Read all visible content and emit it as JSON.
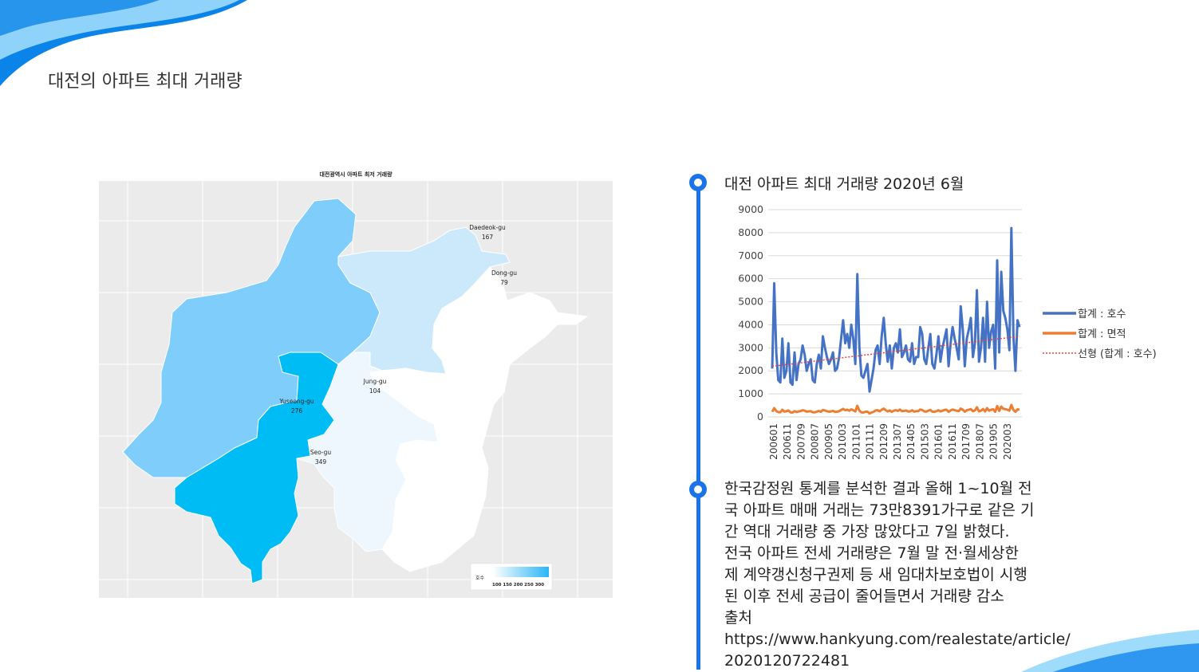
{
  "slide": {
    "title": "대전의 아파트 최대 거래량"
  },
  "map": {
    "title": "대전광역시 아파트 최저 거래량",
    "regions": [
      {
        "name": "Daedeok-gu",
        "value": "167",
        "color": "#cce9fb"
      },
      {
        "name": "Dong-gu",
        "value": "79",
        "color": "#ffffff"
      },
      {
        "name": "Jung-gu",
        "value": "104",
        "color": "#eef7fd"
      },
      {
        "name": "Yuseong-gu",
        "value": "276",
        "color": "#7fcdfb"
      },
      {
        "name": "Seo-gu",
        "value": "349",
        "color": "#00bcf5"
      }
    ],
    "legend": {
      "title": "호수",
      "ticks": "100 150 200 250 300",
      "color_low": "#ffffff",
      "color_high": "#29b6f6"
    },
    "background": "#ebebeb"
  },
  "timeline": {
    "heading1": "대전 아파트 최대 거래량  2020년 6월",
    "body_lines": [
      "한국감정원 통계를 분석한 결과 올해 1~10월 전",
      "국 아파트 매매 거래는 73만8391가구로 같은 기",
      "간 역대 거래량 중 가장 많았다고 7일 밝혔다.",
      "전국 아파트 전세 거래량은  7월 말 전·월세상한",
      "제 계약갱신청구권제 등 새 임대차보호법이 시행",
      "된 이후 전세 공급이 줄어들면서 거래량 감소",
      "출처",
      "https://www.hankyung.com/realestate/article/",
      "2020120722481"
    ],
    "accent": "#1a73e8"
  },
  "chart_data": {
    "type": "line",
    "x_tick_labels": [
      "200601",
      "200611",
      "200709",
      "200807",
      "200905",
      "201003",
      "201101",
      "201111",
      "201209",
      "201307",
      "201405",
      "201503",
      "201601",
      "201611",
      "201709",
      "201807",
      "201905",
      "202003"
    ],
    "ylim": [
      0,
      9000
    ],
    "y_ticks": [
      0,
      1000,
      2000,
      3000,
      4000,
      5000,
      6000,
      7000,
      8000,
      9000
    ],
    "grid": true,
    "legend_position": "right",
    "series": [
      {
        "name": "합계 : 호수",
        "color": "#4472c4",
        "values": [
          2100,
          5800,
          2800,
          1600,
          1500,
          3400,
          1700,
          2000,
          3200,
          1500,
          1400,
          2800,
          1600,
          2300,
          2500,
          3100,
          2700,
          2000,
          2300,
          2500,
          1600,
          1500,
          2300,
          2700,
          2100,
          3500,
          3000,
          2600,
          2300,
          2500,
          2800,
          2000,
          2100,
          2600,
          3400,
          4200,
          3200,
          3600,
          3000,
          4000,
          3400,
          2300,
          6200,
          3000,
          1800,
          1700,
          2000,
          2300,
          1100,
          1600,
          2100,
          2900,
          3100,
          2300,
          3500,
          4300,
          3200,
          2400,
          3100,
          2100,
          3000,
          3200,
          2800,
          3800,
          2600,
          2800,
          3100,
          2500,
          2400,
          3200,
          2300,
          2600,
          2600,
          3900,
          3600,
          2500,
          2300,
          3000,
          3600,
          2300,
          2100,
          2700,
          3500,
          2400,
          3000,
          3400,
          3800,
          2200,
          3200,
          3900,
          3400,
          3000,
          2500,
          4800,
          3800,
          2200,
          3400,
          3800,
          4300,
          2600,
          3200,
          5500,
          2400,
          3000,
          4300,
          2400,
          5000,
          3000,
          3700,
          4000,
          2100,
          6800,
          2800,
          6300,
          4600,
          4300,
          3800,
          2900,
          8200,
          3500,
          2000,
          4200,
          3900
        ]
      },
      {
        "name": "합계 : 면적",
        "color": "#ed7d31",
        "values": [
          220,
          380,
          260,
          210,
          200,
          310,
          230,
          250,
          280,
          200,
          190,
          250,
          210,
          240,
          250,
          290,
          270,
          230,
          240,
          250,
          200,
          200,
          230,
          260,
          220,
          300,
          280,
          250,
          230,
          240,
          260,
          220,
          220,
          250,
          300,
          350,
          290,
          310,
          270,
          330,
          290,
          240,
          480,
          270,
          200,
          190,
          220,
          230,
          150,
          190,
          220,
          280,
          290,
          240,
          310,
          360,
          290,
          240,
          280,
          220,
          270,
          290,
          260,
          320,
          250,
          260,
          280,
          240,
          240,
          290,
          230,
          250,
          250,
          320,
          300,
          240,
          230,
          270,
          300,
          230,
          220,
          250,
          290,
          240,
          270,
          300,
          310,
          220,
          280,
          320,
          290,
          270,
          250,
          360,
          310,
          230,
          290,
          310,
          340,
          250,
          280,
          420,
          240,
          270,
          340,
          240,
          380,
          270,
          310,
          330,
          220,
          470,
          260,
          450,
          350,
          340,
          310,
          270,
          520,
          300,
          220,
          330,
          310
        ]
      },
      {
        "name": "선형 (합계 : 호수)",
        "color": "#e8443a",
        "style": "dotted",
        "trend_start": 2200,
        "trend_end": 3500
      }
    ]
  }
}
